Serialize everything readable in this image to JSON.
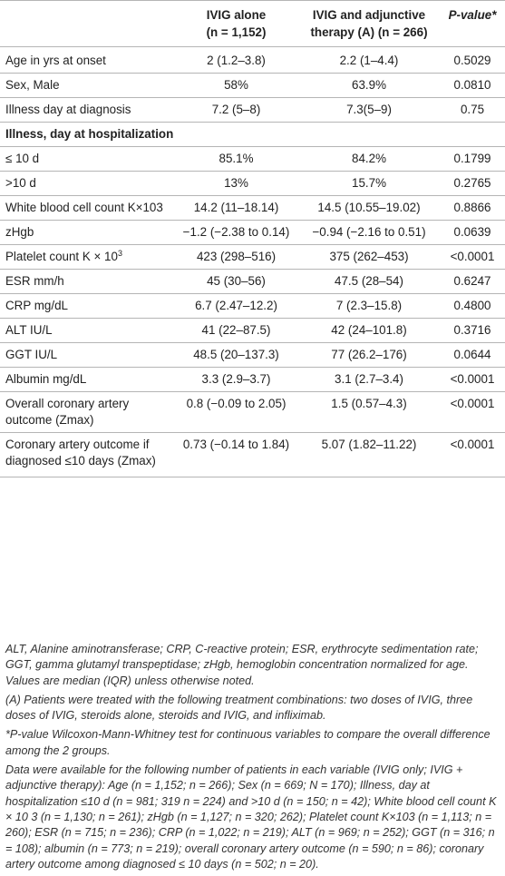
{
  "header": {
    "col_group1": {
      "line1": "IVIG alone",
      "line2": "(n = 1,152)"
    },
    "col_group2": {
      "line1": "IVIG and adjunctive",
      "line2": "therapy (A) (n = 266)"
    },
    "col_pvalue": "P-value*"
  },
  "rows": [
    {
      "label": "Age in yrs at onset",
      "ivig": "2 (1.2–3.8)",
      "adj": "2.2 (1–4.4)",
      "p": "0.5029"
    },
    {
      "label": "Sex, Male",
      "ivig": "58%",
      "adj": "63.9%",
      "p": "0.0810"
    },
    {
      "label": "Illness day at diagnosis",
      "ivig": "7.2 (5–8)",
      "adj": "7.3(5–9)",
      "p": "0.75"
    },
    {
      "label": "Illness, day at hospitalization",
      "section": true
    },
    {
      "label": "≤ 10 d",
      "ivig": "85.1%",
      "adj": "84.2%",
      "p": "0.1799"
    },
    {
      "label": ">10 d",
      "ivig": "13%",
      "adj": "15.7%",
      "p": "0.2765"
    },
    {
      "label": "White blood cell count K×103",
      "ivig": "14.2 (11–18.14)",
      "adj": "14.5 (10.55–19.02)",
      "p": "0.8866"
    },
    {
      "label": "zHgb",
      "ivig": "−1.2 (−2.38 to 0.14)",
      "adj": "−0.94 (−2.16 to 0.51)",
      "p": "0.0639"
    },
    {
      "label": "Platelet count K × 10",
      "label_sup": "3",
      "ivig": "423 (298–516)",
      "adj": "375 (262–453)",
      "p": "<0.0001"
    },
    {
      "label": "ESR mm/h",
      "ivig": "45 (30–56)",
      "adj": "47.5 (28–54)",
      "p": "0.6247"
    },
    {
      "label": "CRP mg/dL",
      "ivig": "6.7 (2.47–12.2)",
      "adj": "7 (2.3–15.8)",
      "p": "0.4800"
    },
    {
      "label": "ALT IU/L",
      "ivig": "41 (22–87.5)",
      "adj": "42 (24–101.8)",
      "p": "0.3716"
    },
    {
      "label": "GGT IU/L",
      "ivig": "48.5 (20–137.3)",
      "adj": "77 (26.2–176)",
      "p": "0.0644"
    },
    {
      "label": "Albumin mg/dL",
      "ivig": "3.3 (2.9–3.7)",
      "adj": "3.1 (2.7–3.4)",
      "p": "<0.0001"
    },
    {
      "label": "Overall coronary artery outcome (Zmax)",
      "ivig": "0.8 (−0.09 to 2.05)",
      "adj": "1.5 (0.57–4.3)",
      "p": "<0.0001"
    },
    {
      "label": "Coronary artery outcome if diagnosed ≤10 days (Zmax)",
      "ivig": "0.73 (−0.14 to 1.84)",
      "adj": "5.07 (1.82–11.22)",
      "p": "<0.0001"
    }
  ],
  "footnotes": [
    "ALT, Alanine aminotransferase; CRP, C-reactive protein; ESR, erythrocyte sedimentation rate; GGT, gamma glutamyl transpeptidase; zHgb, hemoglobin concentration normalized for age. Values are median (IQR) unless otherwise noted.",
    "(A) Patients were treated with the following treatment combinations: two doses of IVIG, three doses of IVIG, steroids alone, steroids and IVIG, and infliximab.",
    "*P-value Wilcoxon-Mann-Whitney test for continuous variables to compare the overall difference among the 2 groups.",
    "Data were available for the following number of patients in each variable (IVIG only; IVIG + adjunctive therapy): Age (n = 1,152; n = 266); Sex (n = 669; N = 170); Illness, day at hospitalization ≤10 d (n = 981; 319 n = 224) and >10 d (n = 150; n = 42); White blood cell count K × 10 3 (n = 1,130; n = 261); zHgb (n = 1,127; n = 320; 262); Platelet count K×103 (n = 1,113; n = 260); ESR (n = 715; n = 236); CRP (n = 1,022; n = 219); ALT (n = 969; n = 252); GGT (n = 316; n = 108); albumin (n = 773; n = 219); overall coronary artery outcome (n = 590; n = 86); coronary artery outcome among diagnosed ≤ 10 days (n = 502; n = 20)."
  ]
}
